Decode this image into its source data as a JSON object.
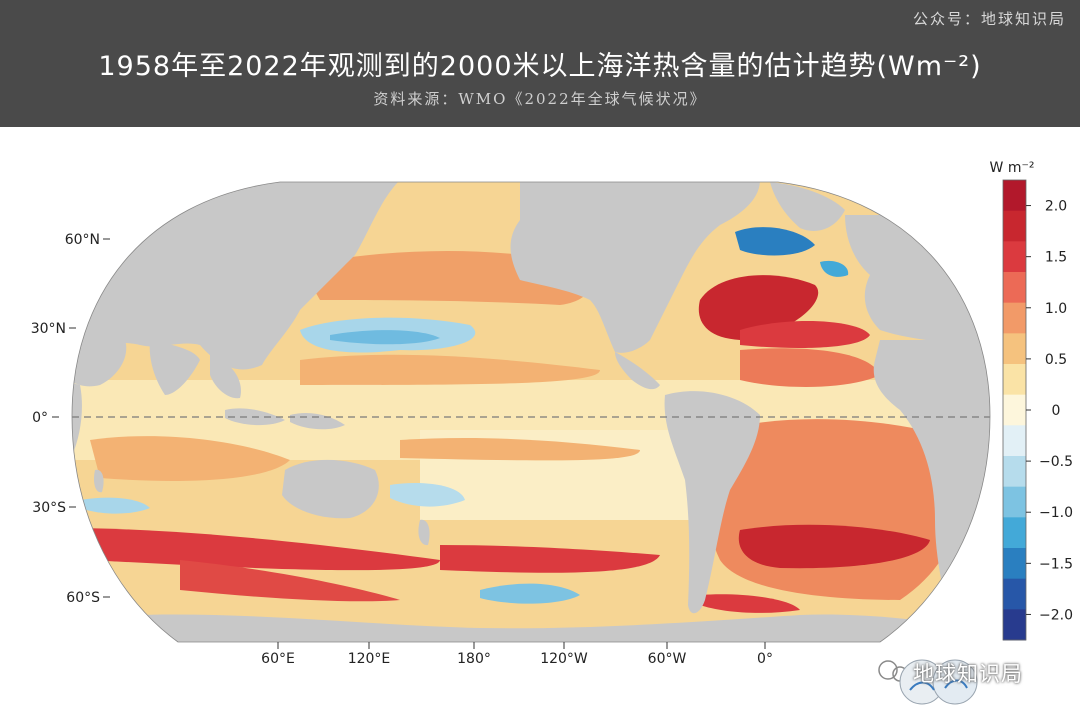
{
  "header": {
    "watermark": "公众号：地球知识局",
    "title": "1958年至2022年观测到的2000米以上海洋热含量的估计趋势(Wm⁻²)",
    "subtitle": "资料来源：WMO《2022年全球气候状况》"
  },
  "map": {
    "projection": "Robinson",
    "lat_labels": [
      "60°N",
      "30°N",
      "0°",
      "30°S",
      "60°S"
    ],
    "lon_labels": [
      "60°E",
      "120°E",
      "180°",
      "120°W",
      "60°W",
      "0°"
    ],
    "equator_line": "dashed"
  },
  "colorbar": {
    "unit": "W m⁻²",
    "ticks": [
      "2.0",
      "1.5",
      "1.0",
      "0.5",
      "0",
      "−0.5",
      "−1.0",
      "−1.5",
      "−2.0"
    ],
    "colors": [
      "#b2182b",
      "#c8272f",
      "#db3a3f",
      "#ec6a56",
      "#f29a68",
      "#f5c27e",
      "#fae3a6",
      "#fdf6dc",
      "#e2f0f6",
      "#b6dcec",
      "#7dc3e2",
      "#43a9d8",
      "#2a7fc0",
      "#2757a8",
      "#283b8e"
    ],
    "land_color": "#c8c8c8"
  },
  "badge": {
    "text": "地球知识局"
  }
}
